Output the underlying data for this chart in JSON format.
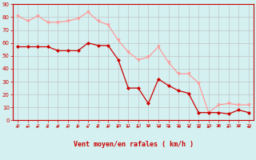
{
  "hours": [
    0,
    1,
    2,
    3,
    4,
    5,
    6,
    7,
    8,
    9,
    10,
    11,
    12,
    13,
    14,
    15,
    16,
    17,
    18,
    19,
    20,
    21,
    22,
    23
  ],
  "wind_avg": [
    57,
    57,
    57,
    57,
    54,
    54,
    54,
    60,
    58,
    58,
    47,
    25,
    25,
    13,
    32,
    27,
    23,
    21,
    6,
    6,
    6,
    5,
    8,
    6
  ],
  "wind_gust": [
    81,
    77,
    81,
    76,
    76,
    77,
    79,
    84,
    77,
    74,
    62,
    53,
    47,
    49,
    57,
    45,
    36,
    36,
    29,
    6,
    12,
    13,
    12,
    12
  ],
  "wind_avg_color": "#cc0000",
  "wind_gust_color": "#ff9999",
  "background_color": "#d4f0f0",
  "grid_color": "#bbbbbb",
  "xlabel": "Vent moyen/en rafales ( km/h )",
  "xlabel_color": "#cc0000",
  "tick_color": "#cc0000",
  "ylim": [
    0,
    90
  ],
  "yticks": [
    0,
    10,
    20,
    30,
    40,
    50,
    60,
    70,
    80,
    90
  ],
  "xlim": [
    0,
    23
  ],
  "arrow_angles": [
    45,
    45,
    45,
    45,
    45,
    45,
    45,
    45,
    45,
    45,
    45,
    45,
    45,
    0,
    315,
    315,
    315,
    315,
    270,
    90,
    180,
    135,
    180,
    270
  ]
}
